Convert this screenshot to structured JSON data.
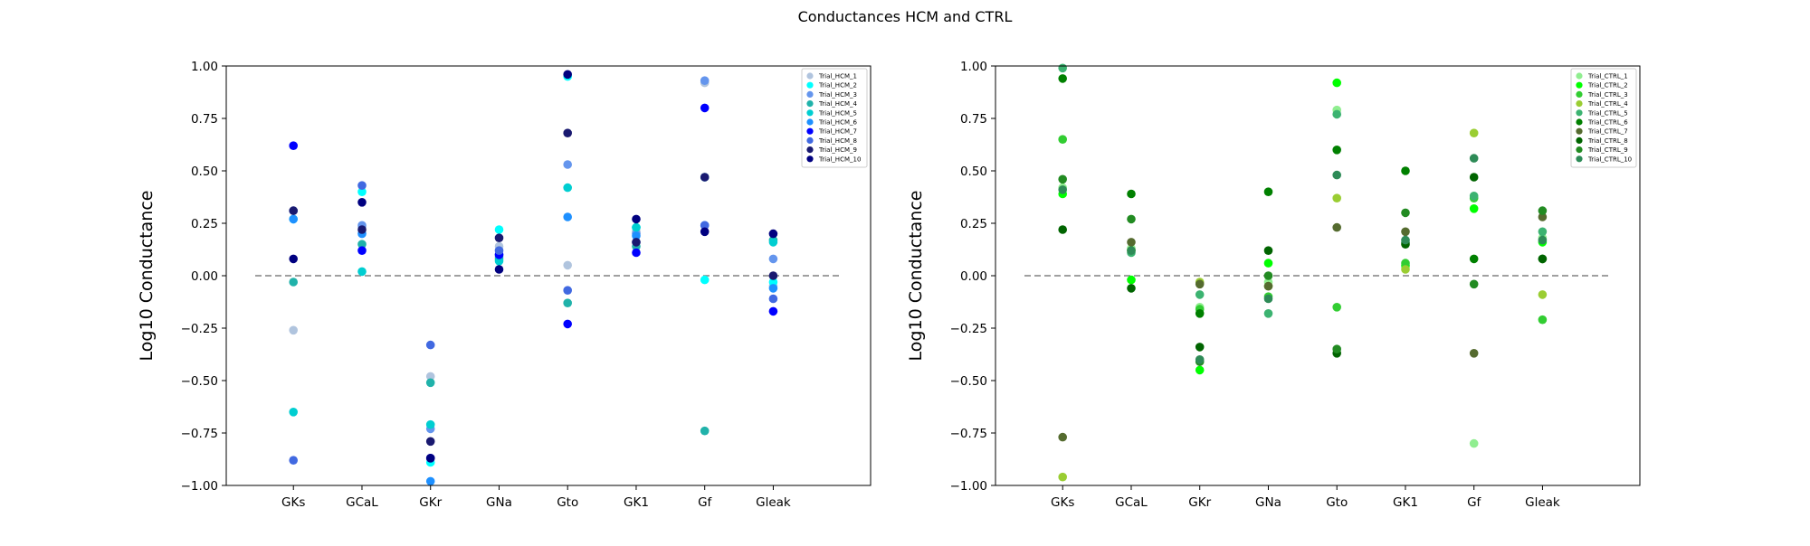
{
  "suptitle": "Conductances HCM and CTRL",
  "chart_data": [
    {
      "type": "scatter",
      "panel": "left",
      "title": "",
      "xlabel": "",
      "ylabel": "Log10 Conductance",
      "ylim": [
        -1.0,
        1.0
      ],
      "yticks": [
        "−1.00",
        "−0.75",
        "−0.50",
        "−0.25",
        "0.00",
        "0.25",
        "0.50",
        "0.75",
        "1.00"
      ],
      "categories": [
        "GKs",
        "GCaL",
        "GKr",
        "GNa",
        "Gto",
        "GK1",
        "Gf",
        "Gleak"
      ],
      "reference_line": 0,
      "legend_position": "top-right",
      "grid": false,
      "series": [
        {
          "name": "Trial_HCM_1",
          "color": "#b0c4de",
          "values": [
            -0.26,
            0.23,
            -0.48,
            0.14,
            0.05,
            0.21,
            0.92,
            -0.05
          ]
        },
        {
          "name": "Trial_HCM_2",
          "color": "#00ffff",
          "values": [
            0.27,
            0.4,
            -0.89,
            0.22,
            0.95,
            0.23,
            -0.02,
            -0.03
          ]
        },
        {
          "name": "Trial_HCM_3",
          "color": "#6495ed",
          "values": [
            0.31,
            0.24,
            -0.73,
            0.09,
            0.53,
            0.2,
            0.93,
            0.08
          ]
        },
        {
          "name": "Trial_HCM_4",
          "color": "#20b2aa",
          "values": [
            -0.03,
            0.15,
            -0.51,
            0.08,
            -0.13,
            0.14,
            -0.74,
            0.17
          ]
        },
        {
          "name": "Trial_HCM_5",
          "color": "#00ced1",
          "values": [
            -0.65,
            0.02,
            -0.71,
            0.07,
            0.42,
            0.23,
            0.47,
            0.16
          ]
        },
        {
          "name": "Trial_HCM_6",
          "color": "#1e90ff",
          "values": [
            0.27,
            0.2,
            -0.98,
            0.1,
            0.28,
            0.19,
            0.24,
            -0.06
          ]
        },
        {
          "name": "Trial_HCM_7",
          "color": "#0000ff",
          "values": [
            0.62,
            0.12,
            -0.87,
            0.1,
            -0.23,
            0.11,
            0.8,
            -0.17
          ]
        },
        {
          "name": "Trial_HCM_8",
          "color": "#4169e1",
          "values": [
            -0.88,
            0.43,
            -0.33,
            0.12,
            -0.07,
            0.16,
            0.24,
            -0.11
          ]
        },
        {
          "name": "Trial_HCM_9",
          "color": "#191970",
          "values": [
            0.31,
            0.22,
            -0.79,
            0.18,
            0.68,
            0.16,
            0.47,
            0.0
          ]
        },
        {
          "name": "Trial_HCM_10",
          "color": "#000080",
          "values": [
            0.08,
            0.35,
            -0.87,
            0.03,
            0.96,
            0.27,
            0.21,
            0.2
          ]
        }
      ]
    },
    {
      "type": "scatter",
      "panel": "right",
      "title": "",
      "xlabel": "",
      "ylabel": "Log10 Conductance",
      "ylim": [
        -1.0,
        1.0
      ],
      "yticks": [
        "−1.00",
        "−0.75",
        "−0.50",
        "−0.25",
        "0.00",
        "0.25",
        "0.50",
        "0.75",
        "1.00"
      ],
      "categories": [
        "GKs",
        "GCaL",
        "GKr",
        "GNa",
        "Gto",
        "GK1",
        "Gf",
        "Gleak"
      ],
      "reference_line": 0,
      "legend_position": "top-right",
      "grid": false,
      "series": [
        {
          "name": "Trial_CTRL_1",
          "color": "#90ee90",
          "values": [
            0.42,
            0.13,
            -0.15,
            -0.03,
            0.79,
            0.04,
            -0.8,
            0.18
          ]
        },
        {
          "name": "Trial_CTRL_2",
          "color": "#00ff00",
          "values": [
            0.39,
            -0.02,
            -0.45,
            0.06,
            0.92,
            0.05,
            0.32,
            0.16
          ]
        },
        {
          "name": "Trial_CTRL_3",
          "color": "#32cd32",
          "values": [
            0.65,
            0.12,
            -0.16,
            -0.1,
            -0.15,
            0.06,
            0.37,
            -0.21
          ]
        },
        {
          "name": "Trial_CTRL_4",
          "color": "#9acd32",
          "values": [
            -0.96,
            0.12,
            -0.03,
            -0.05,
            0.37,
            0.03,
            0.68,
            -0.09
          ]
        },
        {
          "name": "Trial_CTRL_5",
          "color": "#3cb371",
          "values": [
            0.99,
            0.11,
            -0.09,
            -0.18,
            0.77,
            0.16,
            0.38,
            0.21
          ]
        },
        {
          "name": "Trial_CTRL_6",
          "color": "#008000",
          "values": [
            0.94,
            0.39,
            -0.18,
            0.4,
            0.6,
            0.5,
            0.08,
            0.08
          ]
        },
        {
          "name": "Trial_CTRL_7",
          "color": "#556b2f",
          "values": [
            -0.77,
            0.16,
            -0.04,
            -0.05,
            0.23,
            0.21,
            -0.37,
            0.28
          ]
        },
        {
          "name": "Trial_CTRL_8",
          "color": "#006400",
          "values": [
            0.22,
            -0.06,
            -0.34,
            0.12,
            -0.37,
            0.15,
            0.47,
            0.08
          ]
        },
        {
          "name": "Trial_CTRL_9",
          "color": "#228b22",
          "values": [
            0.46,
            0.27,
            -0.41,
            0.0,
            -0.35,
            0.3,
            -0.04,
            0.31
          ]
        },
        {
          "name": "Trial_CTRL_10",
          "color": "#2e8b57",
          "values": [
            0.41,
            0.12,
            -0.4,
            -0.11,
            0.48,
            0.17,
            0.56,
            0.17
          ]
        }
      ]
    }
  ]
}
